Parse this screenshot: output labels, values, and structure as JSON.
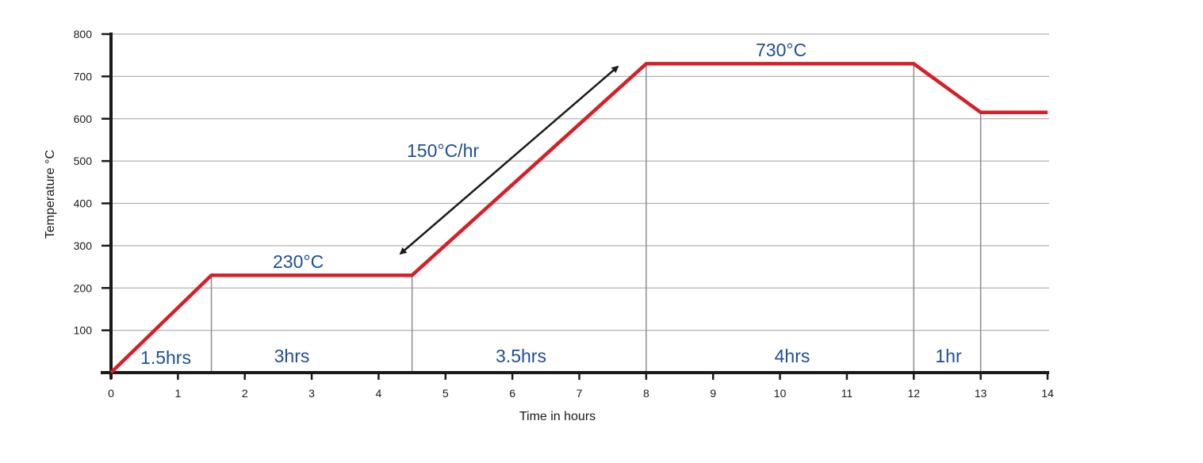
{
  "chart_data": {
    "type": "line",
    "title": "",
    "xlabel": "Time in hours",
    "ylabel": "Temperature °C",
    "xlim": [
      0,
      14
    ],
    "ylim": [
      0,
      800
    ],
    "x_ticks": [
      "0",
      "1",
      "2",
      "3",
      "4",
      "5",
      "6",
      "7",
      "8",
      "9",
      "10",
      "11",
      "12",
      "13",
      "14"
    ],
    "y_ticks": [
      "100",
      "200",
      "300",
      "400",
      "500",
      "600",
      "700",
      "800"
    ],
    "grid": "horizontal",
    "series": [
      {
        "x": [
          0,
          1.5,
          4.5,
          8,
          12,
          13,
          14
        ],
        "y": [
          0,
          230,
          230,
          730,
          730,
          615,
          615
        ]
      }
    ],
    "phase_boundaries": [
      1.5,
      4.5,
      8,
      12,
      13
    ],
    "annotations": {
      "hold_1": "230°C",
      "hold_2": "730°C",
      "ramp_rate": "150°C/hr",
      "durations": [
        "1.5hrs",
        "3hrs",
        "3.5hrs",
        "4hrs",
        "1hr"
      ]
    },
    "colors": {
      "line": "#d71f27",
      "annotation_text": "#1f4e96",
      "grid": "#b3b3b3",
      "axis": "#1a1a1a",
      "arrow": "#1a1a1a"
    }
  }
}
